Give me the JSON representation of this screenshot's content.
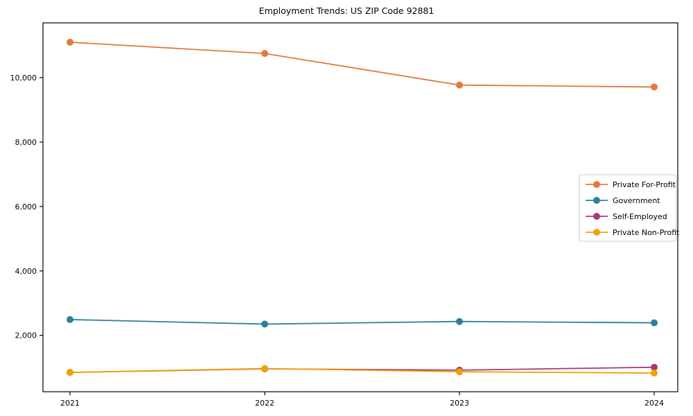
{
  "chart_data": {
    "type": "line",
    "title": "Employment Trends: US ZIP Code 92881",
    "categories": [
      "2021",
      "2022",
      "2023",
      "2024"
    ],
    "series": [
      {
        "name": "Private For-Profit",
        "color": "#E2793F",
        "values": [
          11100,
          10750,
          9770,
          9710
        ]
      },
      {
        "name": "Government",
        "color": "#2E7F9E",
        "values": [
          2490,
          2350,
          2430,
          2390
        ]
      },
      {
        "name": "Self-Employed",
        "color": "#A83779",
        "values": [
          850,
          960,
          920,
          1010
        ]
      },
      {
        "name": "Private Non-Profit",
        "color": "#F0A202",
        "values": [
          850,
          970,
          870,
          830
        ]
      }
    ],
    "xlabel": "",
    "ylabel": "",
    "ylim": [
      250,
      11700
    ],
    "yticks": [
      2000,
      4000,
      6000,
      8000,
      10000
    ],
    "grid": false,
    "legend_position": "center-right",
    "marker": "circle",
    "axis_color": "#000000",
    "legend_border_color": "#cccccc",
    "background_color": "#ffffff"
  }
}
